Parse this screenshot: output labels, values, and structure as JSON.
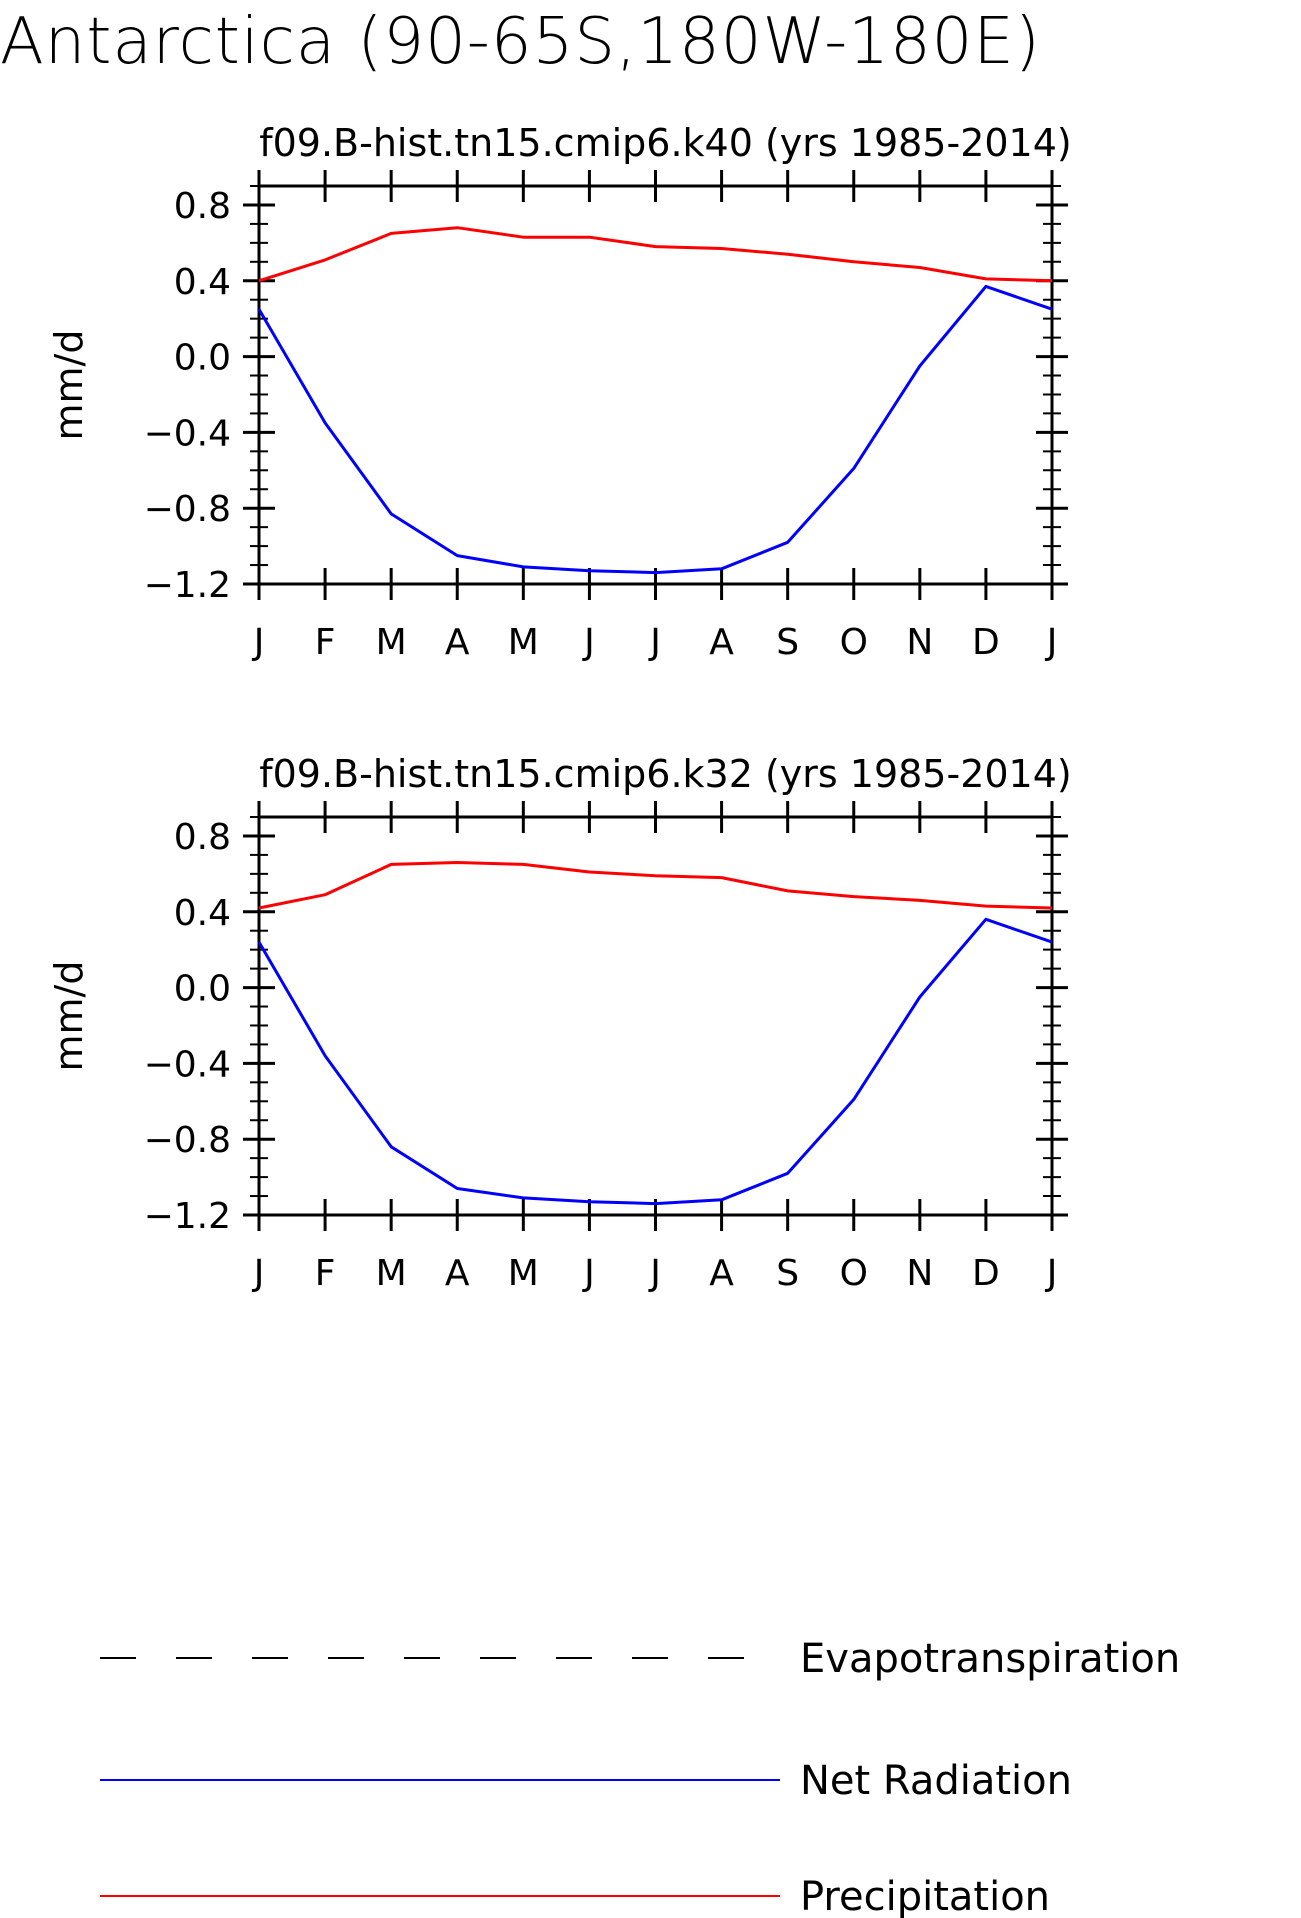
{
  "title": "Antarctica (90-65S,180W-180E)",
  "legend": {
    "placement": "bottom",
    "entries": [
      {
        "label": "Evapotranspiration",
        "color": "#000000",
        "style": "dashed"
      },
      {
        "label": "Net Radiation",
        "color": "#0000ff",
        "style": "solid"
      },
      {
        "label": "Precipitation",
        "color": "#ff0000",
        "style": "solid"
      }
    ]
  },
  "chart_data": [
    {
      "type": "line",
      "title": "f09.B-hist.tn15.cmip6.k40 (yrs 1985-2014)",
      "xlabel": "",
      "ylabel": "mm/d",
      "categories": [
        "J",
        "F",
        "M",
        "A",
        "M",
        "J",
        "J",
        "A",
        "S",
        "O",
        "N",
        "D",
        "J"
      ],
      "ylim": [
        -1.2,
        0.9
      ],
      "yticks": [
        "0.8",
        "0.4",
        "0.0",
        "-0.4",
        "-0.8",
        "-1.2"
      ],
      "grid": false,
      "series": [
        {
          "name": "Net Radiation",
          "color": "#0000ff",
          "values": [
            0.25,
            -0.35,
            -0.83,
            -1.05,
            -1.11,
            -1.13,
            -1.14,
            -1.12,
            -0.98,
            -0.59,
            -0.05,
            0.37,
            0.25
          ]
        },
        {
          "name": "Precipitation",
          "color": "#ff0000",
          "values": [
            0.4,
            0.51,
            0.65,
            0.68,
            0.63,
            0.63,
            0.58,
            0.57,
            0.54,
            0.5,
            0.47,
            0.41,
            0.4
          ]
        }
      ]
    },
    {
      "type": "line",
      "title": "f09.B-hist.tn15.cmip6.k32 (yrs 1985-2014)",
      "xlabel": "",
      "ylabel": "mm/d",
      "categories": [
        "J",
        "F",
        "M",
        "A",
        "M",
        "J",
        "J",
        "A",
        "S",
        "O",
        "N",
        "D",
        "J"
      ],
      "ylim": [
        -1.2,
        0.9
      ],
      "yticks": [
        "0.8",
        "0.4",
        "0.0",
        "-0.4",
        "-0.8",
        "-1.2"
      ],
      "grid": false,
      "series": [
        {
          "name": "Net Radiation",
          "color": "#0000ff",
          "values": [
            0.24,
            -0.36,
            -0.84,
            -1.06,
            -1.11,
            -1.13,
            -1.14,
            -1.12,
            -0.98,
            -0.59,
            -0.05,
            0.36,
            0.24
          ]
        },
        {
          "name": "Precipitation",
          "color": "#ff0000",
          "values": [
            0.42,
            0.49,
            0.65,
            0.66,
            0.65,
            0.61,
            0.59,
            0.58,
            0.51,
            0.48,
            0.46,
            0.43,
            0.42
          ]
        }
      ]
    }
  ]
}
